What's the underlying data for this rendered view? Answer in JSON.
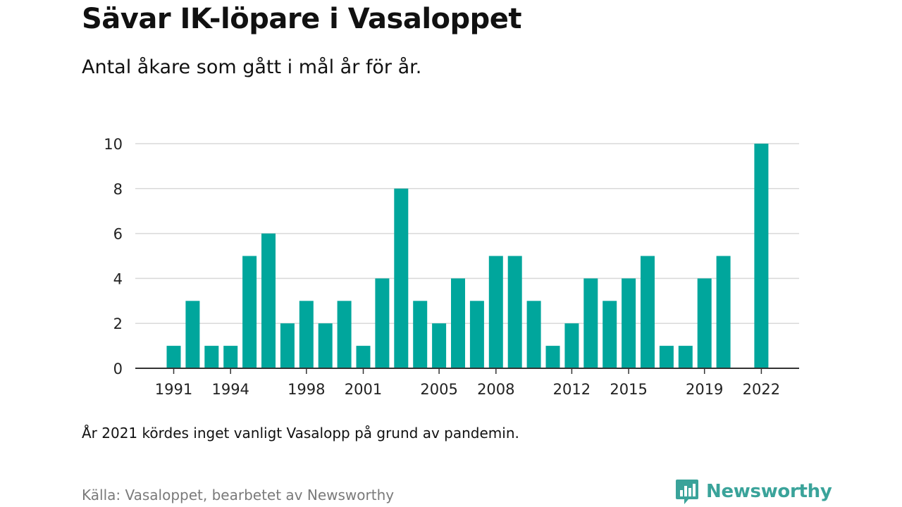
{
  "header": {
    "title": "Sävar IK-löpare i Vasaloppet",
    "subtitle": "Antal åkare som gått i mål år för år."
  },
  "footer": {
    "note": "År 2021 kördes inget vanligt Vasalopp på grund av pandemin.",
    "source": "Källa: Vasaloppet, bearbetet av Newsworthy",
    "brand": "Newsworthy",
    "brand_icon": "newsworthy-logo-icon"
  },
  "colors": {
    "bar": "#00a69c",
    "grid": "#d9d9d9",
    "axis": "#333333",
    "brand": "#3aa39a"
  },
  "chart_data": {
    "type": "bar",
    "title": "Sävar IK-löpare i Vasaloppet",
    "subtitle": "Antal åkare som gått i mål år för år.",
    "categories": [
      1991,
      1992,
      1993,
      1994,
      1995,
      1996,
      1997,
      1998,
      1999,
      2000,
      2001,
      2002,
      2003,
      2004,
      2005,
      2006,
      2007,
      2008,
      2009,
      2010,
      2011,
      2012,
      2013,
      2014,
      2015,
      2016,
      2017,
      2018,
      2019,
      2020,
      2021,
      2022
    ],
    "values": [
      1,
      3,
      1,
      1,
      5,
      6,
      2,
      3,
      2,
      3,
      1,
      4,
      8,
      3,
      2,
      4,
      3,
      5,
      5,
      3,
      1,
      2,
      4,
      3,
      4,
      5,
      1,
      1,
      4,
      5,
      null,
      10
    ],
    "x_tick_labels": [
      "1991",
      "1994",
      "1998",
      "2001",
      "2005",
      "2008",
      "2012",
      "2015",
      "2019",
      "2022"
    ],
    "y_ticks": [
      0,
      2,
      4,
      6,
      8,
      10
    ],
    "ylim": [
      0,
      10
    ],
    "grid": true,
    "legend": "none",
    "xlabel": "",
    "ylabel": ""
  }
}
